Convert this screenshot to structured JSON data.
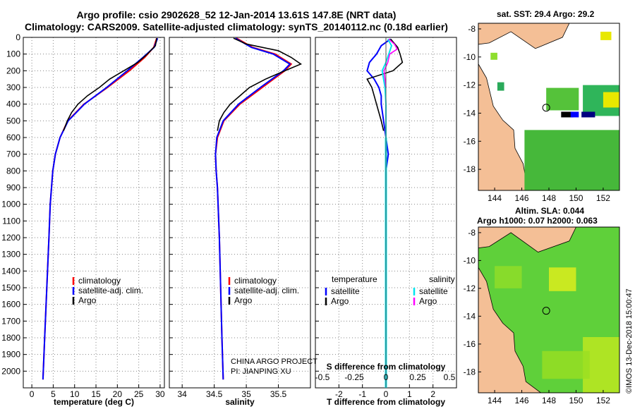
{
  "title_line1": "Argo profile: csio 2902628_52 12-Jan-2014 13.61S 147.8E (NRT data)",
  "title_line2": "Climatology: CARS2009. Satellite-adjusted climatology: synTS_20140112.nc (0.18d earlier)",
  "sst_label": "sat. SST: 29.4 Argo: 29.2",
  "sla_line1": "Altim. SLA: 0.044",
  "sla_line2": "Argo h1000: 0.07 h2000: 0.063",
  "stamp": "©IMOS 13-Dec-2018 15:00:47",
  "project_line1": "CHINA ARGO PROJECT",
  "project_line2": "PI: JIANPING XU",
  "colors": {
    "climatology": "#ff0000",
    "satellite": "#0000ff",
    "argo": "#000000",
    "salinity_sat": "#00e5ee",
    "salinity_argo": "#ff00ff",
    "salinity_clim": "#555555",
    "land": "#f4bf96",
    "sea_green": "#4fc835"
  },
  "chart_data": [
    {
      "type": "line",
      "id": "temperature",
      "xlabel": "temperature (deg C)",
      "ylabel": "depth",
      "xlim": [
        -2,
        31
      ],
      "ylim": [
        2100,
        0
      ],
      "xticks": [
        0,
        5,
        10,
        15,
        20,
        25,
        30
      ],
      "yticks": [
        0,
        100,
        200,
        300,
        400,
        500,
        600,
        700,
        800,
        900,
        1000,
        1100,
        1200,
        1300,
        1400,
        1500,
        1600,
        1700,
        1800,
        1900,
        2000
      ],
      "legend": [
        "climatology",
        "satellite-adj. clim.",
        "Argo"
      ],
      "series": [
        {
          "name": "climatology",
          "depth": [
            5,
            60,
            120,
            200,
            300,
            400,
            500,
            600,
            700,
            800,
            1000,
            1200,
            1500,
            1800,
            2050
          ],
          "values": [
            29.2,
            28.5,
            26.4,
            22.8,
            17.7,
            12.2,
            8.4,
            6.6,
            5.5,
            4.9,
            4.3,
            4.0,
            3.5,
            3.0,
            2.6
          ]
        },
        {
          "name": "satellite-adj. clim.",
          "depth": [
            5,
            60,
            120,
            200,
            300,
            400,
            500,
            600,
            700,
            800,
            1000,
            1200,
            1500,
            1800,
            2050
          ],
          "values": [
            29.4,
            28.6,
            26.0,
            22.3,
            17.5,
            12.3,
            8.5,
            6.6,
            5.5,
            4.9,
            4.3,
            4.0,
            3.5,
            3.0,
            2.6
          ]
        },
        {
          "name": "Argo",
          "depth": [
            5,
            50,
            100,
            150,
            200,
            250,
            300,
            350,
            400,
            450,
            500,
            560
          ],
          "values": [
            29.2,
            28.9,
            27.0,
            24.8,
            21.5,
            18.2,
            15.8,
            13.0,
            10.8,
            9.3,
            8.3,
            7.4
          ]
        }
      ]
    },
    {
      "type": "line",
      "id": "salinity",
      "xlabel": "salinity",
      "ylabel": "depth",
      "xlim": [
        33.8,
        36.0
      ],
      "ylim": [
        2100,
        0
      ],
      "xticks": [
        34,
        34.5,
        35,
        35.5
      ],
      "legend": [
        "climatology",
        "satellite-adj. clim.",
        "Argo"
      ],
      "series": [
        {
          "name": "climatology",
          "depth": [
            5,
            60,
            100,
            160,
            200,
            300,
            400,
            500,
            600,
            700,
            800,
            900,
            1000,
            1200,
            1500,
            1800,
            2050
          ],
          "values": [
            34.85,
            35.1,
            35.45,
            35.7,
            35.6,
            35.25,
            34.9,
            34.65,
            34.55,
            34.52,
            34.53,
            34.55,
            34.56,
            34.58,
            34.6,
            34.62,
            34.64
          ]
        },
        {
          "name": "satellite-adj. clim.",
          "depth": [
            5,
            60,
            100,
            160,
            200,
            300,
            400,
            500,
            600,
            700,
            800,
            900,
            1000,
            1200,
            1500,
            1800,
            2050
          ],
          "values": [
            34.83,
            35.08,
            35.42,
            35.68,
            35.58,
            35.22,
            34.88,
            34.64,
            34.54,
            34.52,
            34.53,
            34.55,
            34.56,
            34.58,
            34.6,
            34.62,
            34.64
          ]
        },
        {
          "name": "Argo",
          "depth": [
            5,
            40,
            80,
            120,
            160,
            200,
            250,
            300,
            350,
            400,
            450,
            500,
            560
          ],
          "values": [
            34.8,
            35.0,
            35.5,
            35.7,
            35.85,
            35.6,
            35.3,
            35.05,
            34.9,
            34.75,
            34.65,
            34.58,
            34.55
          ]
        }
      ]
    },
    {
      "type": "line",
      "id": "difference",
      "xlabel": "T difference from climatology",
      "top_xlabel": "S difference from climatology",
      "xlim": [
        -3,
        3
      ],
      "ylim": [
        2100,
        0
      ],
      "xticks": [
        -2,
        -1,
        0,
        1,
        2
      ],
      "top_xticks": [
        "-0.5",
        "-0.25",
        "0",
        "0.25",
        "0.5"
      ],
      "legend_left_title": "temperature",
      "legend_right_title": "salinity",
      "legend": [
        "satellite",
        "Argo"
      ],
      "series": [
        {
          "name": "T satellite",
          "depth": [
            10,
            50,
            100,
            150,
            200,
            250,
            300,
            350,
            400,
            500,
            600,
            700,
            800,
            900,
            1000,
            1200,
            1500,
            2000
          ],
          "values": [
            0.2,
            -0.2,
            -0.4,
            -0.7,
            -0.8,
            -0.5,
            -0.3,
            -0.2,
            -0.2,
            -0.1,
            0.0,
            0.1,
            0.0,
            0.0,
            0.0,
            0.0,
            0.0,
            0.0
          ]
        },
        {
          "name": "T Argo",
          "depth": [
            10,
            60,
            100,
            150,
            200,
            250,
            300,
            350,
            400,
            450,
            500,
            560
          ],
          "values": [
            0.2,
            0.5,
            0.6,
            0.7,
            0.3,
            -0.8,
            -0.6,
            -0.5,
            -0.4,
            -0.3,
            -0.2,
            -0.1
          ]
        },
        {
          "name": "S satellite",
          "depth": [
            10,
            50,
            100,
            150,
            200,
            300,
            400,
            600,
            1000,
            2000
          ],
          "values": [
            0.02,
            0.06,
            0.03,
            0.0,
            -0.04,
            -0.01,
            0.0,
            0.0,
            0.0,
            0.0
          ]
        },
        {
          "name": "S Argo",
          "depth": [
            10,
            40,
            70,
            100,
            150,
            200,
            250,
            300
          ],
          "values": [
            0.03,
            0.09,
            0.12,
            0.04,
            0.02,
            -0.02,
            -0.01,
            0.0
          ]
        }
      ]
    },
    {
      "type": "heatmap",
      "id": "sst_map",
      "title": "sat. SST: 29.4 Argo: 29.2",
      "xlim": [
        142.8,
        153.2
      ],
      "ylim": [
        -19.5,
        -7.6
      ],
      "xticks": [
        144,
        146,
        148,
        150,
        152
      ],
      "yticks": [
        -8,
        -10,
        -12,
        -14,
        -16,
        -18
      ],
      "argo_position": [
        147.8,
        -13.61
      ]
    },
    {
      "type": "heatmap",
      "id": "sla_map",
      "title": "Altim. SLA: 0.044 / Argo h1000: 0.07 h2000: 0.063",
      "xlim": [
        142.8,
        153.2
      ],
      "ylim": [
        -19.5,
        -7.6
      ],
      "xticks": [
        144,
        146,
        148,
        150,
        152
      ],
      "yticks": [
        -8,
        -10,
        -12,
        -14,
        -16,
        -18
      ],
      "argo_position": [
        147.8,
        -13.61
      ]
    }
  ]
}
